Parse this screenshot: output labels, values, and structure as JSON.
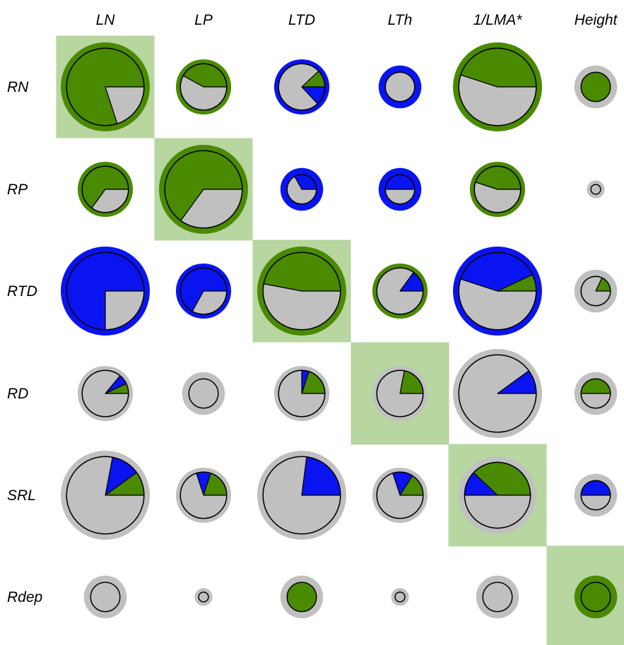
{
  "chart_data": {
    "type": "pie-matrix",
    "columns": [
      "LN",
      "LP",
      "LTD",
      "LTh",
      "1/LMA*",
      "Height"
    ],
    "rows": [
      "RN",
      "RP",
      "RTD",
      "RD",
      "SRL",
      "Rdep"
    ],
    "colors": {
      "green": "#4a8a00",
      "blue": "#0a14f0",
      "grey": "#c0c0c0",
      "highlight": "#b8d6a0"
    },
    "diagonal_highlight": [
      [
        0,
        0
      ],
      [
        1,
        1
      ],
      [
        2,
        2
      ],
      [
        3,
        3
      ],
      [
        4,
        4
      ],
      [
        5,
        5
      ]
    ],
    "cells": [
      [
        {
          "ring": 1.0,
          "pie": 0.87,
          "ringColor": "green",
          "wedges": [
            {
              "c": "green",
              "f": 0.8
            },
            {
              "c": "grey",
              "f": 0.2
            }
          ]
        },
        {
          "ring": 0.62,
          "pie": 0.52,
          "ringColor": "green",
          "wedges": [
            {
              "c": "green",
              "f": 0.42
            },
            {
              "c": "grey",
              "f": 0.58
            }
          ]
        },
        {
          "ring": 0.62,
          "pie": 0.52,
          "ringColor": "blue",
          "wedges": [
            {
              "c": "green",
              "f": 0.12
            },
            {
              "c": "grey",
              "f": 0.75
            },
            {
              "c": "blue",
              "f": 0.13
            }
          ]
        },
        {
          "ring": 0.48,
          "pie": 0.33,
          "ringColor": "blue",
          "wedges": [
            {
              "c": "grey",
              "f": 1.0
            }
          ]
        },
        {
          "ring": 1.0,
          "pie": 0.87,
          "ringColor": "green",
          "wedges": [
            {
              "c": "green",
              "f": 0.45
            },
            {
              "c": "grey",
              "f": 0.55
            }
          ]
        },
        {
          "ring": 0.48,
          "pie": 0.33,
          "ringColor": "grey",
          "wedges": [
            {
              "c": "green",
              "f": 1.0
            }
          ]
        }
      ],
      [
        {
          "ring": 0.62,
          "pie": 0.52,
          "ringColor": "green",
          "wedges": [
            {
              "c": "green",
              "f": 0.65
            },
            {
              "c": "grey",
              "f": 0.35
            }
          ]
        },
        {
          "ring": 1.0,
          "pie": 0.87,
          "ringColor": "green",
          "wedges": [
            {
              "c": "green",
              "f": 0.65
            },
            {
              "c": "grey",
              "f": 0.35
            }
          ]
        },
        {
          "ring": 0.48,
          "pie": 0.33,
          "ringColor": "blue",
          "wedges": [
            {
              "c": "blue",
              "f": 0.33
            },
            {
              "c": "grey",
              "f": 0.67
            }
          ]
        },
        {
          "ring": 0.48,
          "pie": 0.33,
          "ringColor": "blue",
          "wedges": [
            {
              "c": "blue",
              "f": 0.5
            },
            {
              "c": "grey",
              "f": 0.5
            }
          ]
        },
        {
          "ring": 0.62,
          "pie": 0.52,
          "ringColor": "green",
          "wedges": [
            {
              "c": "green",
              "f": 0.45
            },
            {
              "c": "grey",
              "f": 0.55
            }
          ]
        },
        {
          "ring": 0.2,
          "pie": 0.11,
          "ringColor": "grey",
          "wedges": [
            {
              "c": "grey",
              "f": 1.0
            }
          ]
        }
      ],
      [
        {
          "ring": 1.0,
          "pie": 0.87,
          "ringColor": "blue",
          "wedges": [
            {
              "c": "blue",
              "f": 0.75
            },
            {
              "c": "grey",
              "f": 0.25
            }
          ]
        },
        {
          "ring": 0.62,
          "pie": 0.52,
          "ringColor": "blue",
          "wedges": [
            {
              "c": "blue",
              "f": 0.67
            },
            {
              "c": "grey",
              "f": 0.33
            }
          ]
        },
        {
          "ring": 1.0,
          "pie": 0.87,
          "ringColor": "green",
          "wedges": [
            {
              "c": "green",
              "f": 0.47
            },
            {
              "c": "grey",
              "f": 0.53
            }
          ]
        },
        {
          "ring": 0.62,
          "pie": 0.52,
          "ringColor": "green",
          "wedges": [
            {
              "c": "blue",
              "f": 0.15
            },
            {
              "c": "grey",
              "f": 0.85
            }
          ]
        },
        {
          "ring": 1.0,
          "pie": 0.87,
          "ringColor": "blue",
          "wedges": [
            {
              "c": "green",
              "f": 0.07
            },
            {
              "c": "blue",
              "f": 0.38
            },
            {
              "c": "grey",
              "f": 0.55
            }
          ]
        },
        {
          "ring": 0.48,
          "pie": 0.33,
          "ringColor": "grey",
          "wedges": [
            {
              "c": "green",
              "f": 0.18
            },
            {
              "c": "blue",
              "f": 0.0
            },
            {
              "c": "grey",
              "f": 0.82
            }
          ]
        }
      ],
      [
        {
          "ring": 0.62,
          "pie": 0.52,
          "ringColor": "grey",
          "wedges": [
            {
              "c": "green",
              "f": 0.07
            },
            {
              "c": "blue",
              "f": 0.07
            },
            {
              "c": "grey",
              "f": 0.86
            }
          ]
        },
        {
          "ring": 0.48,
          "pie": 0.33,
          "ringColor": "grey",
          "wedges": [
            {
              "c": "grey",
              "f": 1.0
            }
          ]
        },
        {
          "ring": 0.62,
          "pie": 0.52,
          "ringColor": "grey",
          "wedges": [
            {
              "c": "green",
              "f": 0.2
            },
            {
              "c": "blue",
              "f": 0.05
            },
            {
              "c": "grey",
              "f": 0.75
            }
          ]
        },
        {
          "ring": 0.62,
          "pie": 0.52,
          "ringColor": "grey",
          "wedges": [
            {
              "c": "green",
              "f": 0.22
            },
            {
              "c": "grey",
              "f": 0.78
            }
          ]
        },
        {
          "ring": 1.0,
          "pie": 0.87,
          "ringColor": "grey",
          "wedges": [
            {
              "c": "blue",
              "f": 0.1
            },
            {
              "c": "grey",
              "f": 0.9
            }
          ]
        },
        {
          "ring": 0.48,
          "pie": 0.33,
          "ringColor": "grey",
          "wedges": [
            {
              "c": "green",
              "f": 0.5
            },
            {
              "c": "grey",
              "f": 0.5
            }
          ]
        }
      ],
      [
        {
          "ring": 1.0,
          "pie": 0.87,
          "ringColor": "grey",
          "wedges": [
            {
              "c": "green",
              "f": 0.1
            },
            {
              "c": "blue",
              "f": 0.12
            },
            {
              "c": "grey",
              "f": 0.78
            }
          ]
        },
        {
          "ring": 0.62,
          "pie": 0.52,
          "ringColor": "grey",
          "wedges": [
            {
              "c": "green",
              "f": 0.2
            },
            {
              "c": "blue",
              "f": 0.1
            },
            {
              "c": "grey",
              "f": 0.7
            }
          ]
        },
        {
          "ring": 1.0,
          "pie": 0.87,
          "ringColor": "grey",
          "wedges": [
            {
              "c": "blue",
              "f": 0.23
            },
            {
              "c": "grey",
              "f": 0.77
            }
          ]
        },
        {
          "ring": 0.62,
          "pie": 0.52,
          "ringColor": "grey",
          "wedges": [
            {
              "c": "green",
              "f": 0.16
            },
            {
              "c": "blue",
              "f": 0.14
            },
            {
              "c": "grey",
              "f": 0.7
            }
          ]
        },
        {
          "ring": 0.87,
          "pie": 0.74,
          "ringColor": "grey",
          "wedges": [
            {
              "c": "green",
              "f": 0.38
            },
            {
              "c": "blue",
              "f": 0.12
            },
            {
              "c": "grey",
              "f": 0.5
            }
          ]
        },
        {
          "ring": 0.48,
          "pie": 0.33,
          "ringColor": "grey",
          "wedges": [
            {
              "c": "blue",
              "f": 0.5
            },
            {
              "c": "grey",
              "f": 0.5
            }
          ]
        }
      ],
      [
        {
          "ring": 0.48,
          "pie": 0.33,
          "ringColor": "grey",
          "wedges": [
            {
              "c": "grey",
              "f": 1.0
            }
          ]
        },
        {
          "ring": 0.2,
          "pie": 0.11,
          "ringColor": "grey",
          "wedges": [
            {
              "c": "grey",
              "f": 1.0
            }
          ]
        },
        {
          "ring": 0.48,
          "pie": 0.33,
          "ringColor": "grey",
          "wedges": [
            {
              "c": "green",
              "f": 1.0
            }
          ]
        },
        {
          "ring": 0.2,
          "pie": 0.11,
          "ringColor": "grey",
          "wedges": [
            {
              "c": "grey",
              "f": 1.0
            }
          ]
        },
        {
          "ring": 0.48,
          "pie": 0.33,
          "ringColor": "grey",
          "wedges": [
            {
              "c": "grey",
              "f": 1.0
            }
          ]
        },
        {
          "ring": 0.48,
          "pie": 0.33,
          "ringColor": "green",
          "wedges": [
            {
              "c": "green",
              "f": 1.0
            }
          ]
        }
      ]
    ]
  }
}
